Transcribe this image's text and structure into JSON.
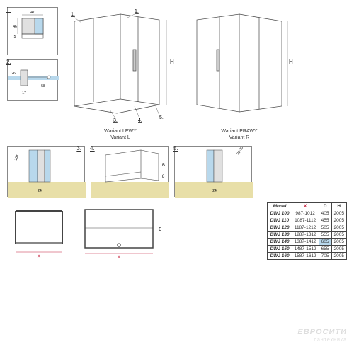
{
  "details": {
    "d1": {
      "label": "1.",
      "dims": {
        "a": "47",
        "b": "46",
        "c": "5"
      }
    },
    "d2": {
      "label": "2.",
      "dims": {
        "a": "17",
        "b": "26",
        "c": "58"
      }
    },
    "d3": {
      "label": "3.",
      "dims": {
        "a": "24",
        "b": "104"
      }
    },
    "d4": {
      "label": "4.",
      "dims": {
        "a": "B",
        "b": "8"
      }
    },
    "d5": {
      "label": "5.",
      "dims": {
        "a": "24",
        "b": "25-35"
      }
    }
  },
  "main_views": {
    "left": {
      "caption1": "Wariant LEWY",
      "caption2": "Variant L"
    },
    "right": {
      "caption1": "Wariant PRAWY",
      "caption2": "Variant R"
    }
  },
  "dim_labels": {
    "H": "H",
    "X": "X",
    "D": "D"
  },
  "table": {
    "headers": [
      "Model",
      "X",
      "D",
      "H"
    ],
    "rows": [
      [
        "DWJ 100",
        "987-1012",
        "405",
        "2005"
      ],
      [
        "DWJ 110",
        "1087-1112",
        "455",
        "2005"
      ],
      [
        "DWJ 120",
        "1187-1212",
        "505",
        "2005"
      ],
      [
        "DWJ 130",
        "1287-1312",
        "555",
        "2005"
      ],
      [
        "DWJ 140",
        "1387-1412",
        "605",
        "2005"
      ],
      [
        "DWJ 150",
        "1487-1512",
        "655",
        "2005"
      ],
      [
        "DWJ 160",
        "1587-1612",
        "705",
        "2005"
      ]
    ],
    "hilite_row": 4,
    "x_header_color": "#c41e3a"
  },
  "colors": {
    "line": "#444",
    "glass": "#b8d8ec",
    "ground": "#e8dfa8",
    "accent": "#6ba4d0"
  },
  "watermark": {
    "brand": "ЕВРОСИТИ",
    "sub": "сантехника"
  }
}
